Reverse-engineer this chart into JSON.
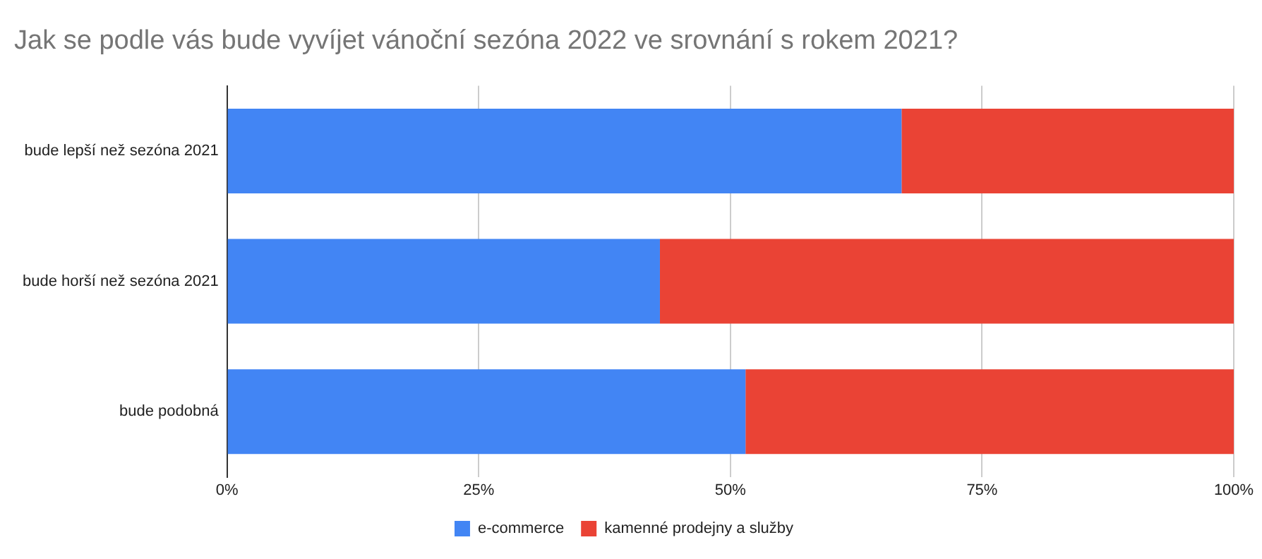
{
  "chart_data": {
    "type": "bar",
    "orientation": "horizontal",
    "stacked": true,
    "title": "Jak se podle vás bude vyvíjet vánoční sezóna 2022 ve srovnání s rokem 2021?",
    "categories": [
      "bude lepší než sezóna 2021",
      "bude horší než sezóna 2021",
      "bude podobná"
    ],
    "series": [
      {
        "name": "e-commerce",
        "color": "#4285f4",
        "values": [
          67,
          43,
          51.5
        ]
      },
      {
        "name": "kamenné prodejny a služby",
        "color": "#ea4335",
        "values": [
          33,
          57,
          48.5
        ]
      }
    ],
    "xlim": [
      0,
      100
    ],
    "xticks": [
      {
        "value": 0,
        "label": "0%"
      },
      {
        "value": 25,
        "label": "25%"
      },
      {
        "value": 50,
        "label": "50%"
      },
      {
        "value": 75,
        "label": "75%"
      },
      {
        "value": 100,
        "label": "100%"
      }
    ],
    "grid": "x",
    "legend": "bottom"
  }
}
